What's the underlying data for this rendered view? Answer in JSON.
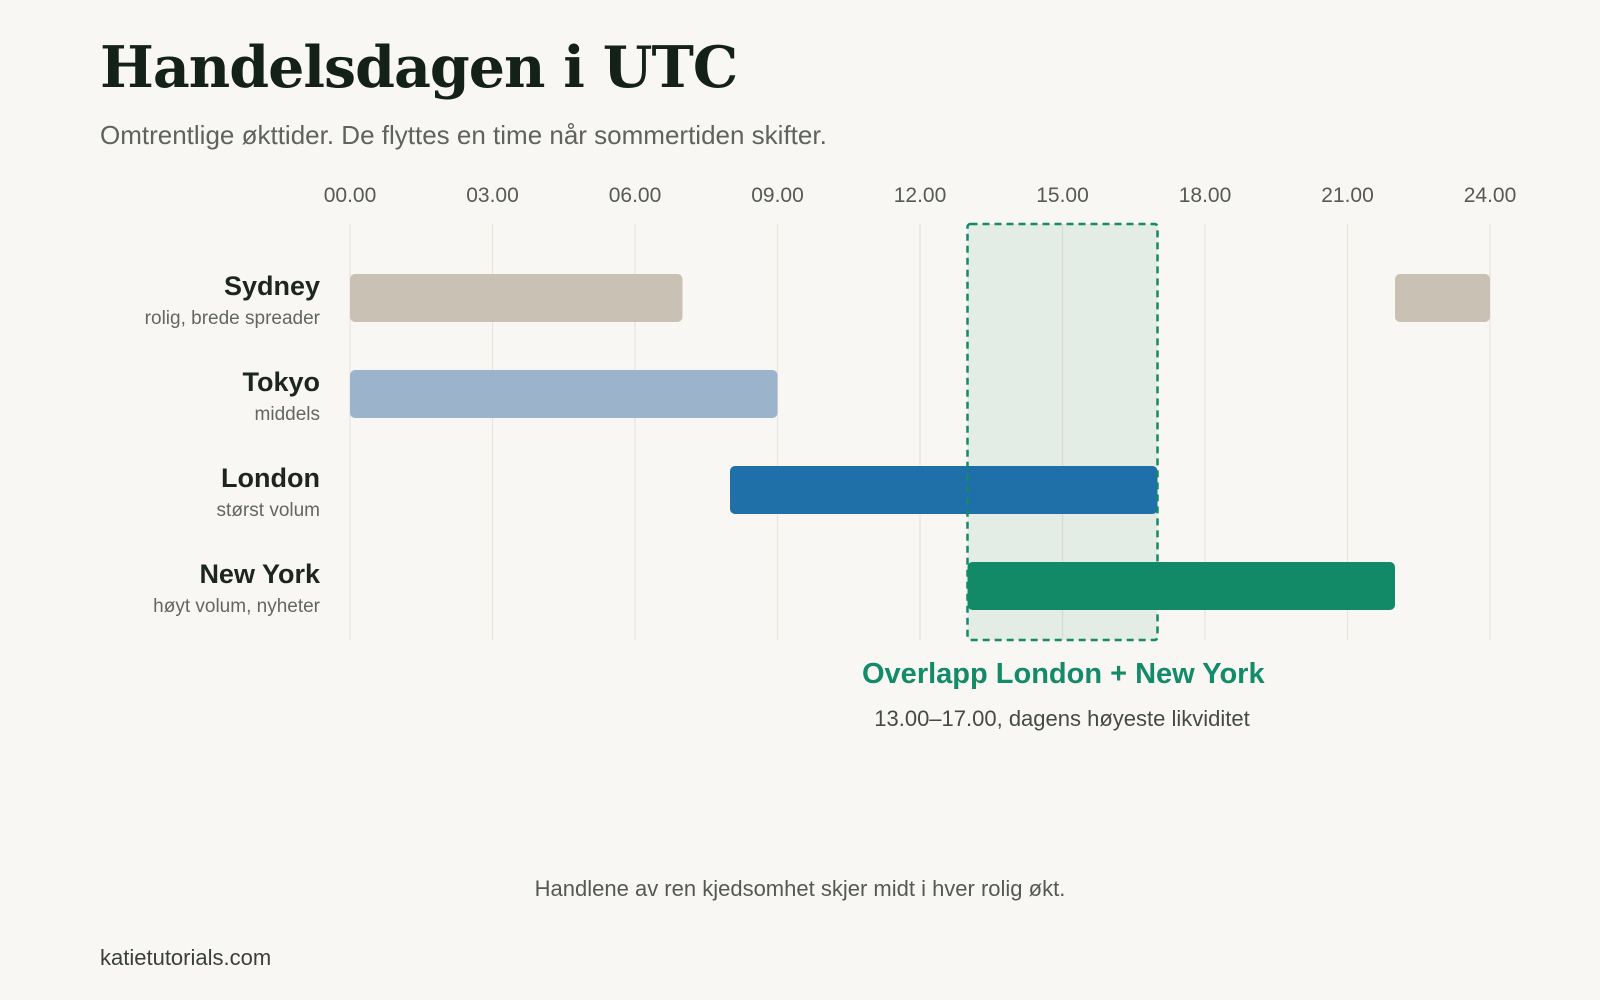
{
  "title": "Handelsdagen i UTC",
  "subtitle": "Omtrentlige økttider. De flyttes en time når sommertiden skifter.",
  "chart_data": {
    "type": "bar",
    "orientation": "horizontal-range",
    "x_unit": "hours UTC",
    "xlim": [
      0,
      24
    ],
    "x_ticks": [
      0,
      3,
      6,
      9,
      12,
      15,
      18,
      21,
      24
    ],
    "x_tick_labels": [
      "00.00",
      "03.00",
      "06.00",
      "09.00",
      "12.00",
      "15.00",
      "18.00",
      "21.00",
      "24.00"
    ],
    "grid": true,
    "sessions": [
      {
        "name": "Sydney",
        "note": "rolig, brede spreader",
        "color": "#c9c1b4",
        "ranges": [
          [
            0,
            7
          ],
          [
            22,
            24
          ]
        ]
      },
      {
        "name": "Tokyo",
        "note": "middels",
        "color": "#9bb4cc",
        "ranges": [
          [
            0,
            9
          ]
        ]
      },
      {
        "name": "London",
        "note": "størst volum",
        "color": "#1f6fa8",
        "ranges": [
          [
            8,
            17
          ]
        ]
      },
      {
        "name": "New York",
        "note": "høyt volum, nyheter",
        "color": "#128a67",
        "ranges": [
          [
            13,
            22
          ]
        ]
      }
    ],
    "highlight": {
      "range": [
        13,
        17
      ],
      "title": "Overlapp London + New York",
      "subtitle": "13.00–17.00, dagens høyeste likviditet",
      "color": "#138a68"
    }
  },
  "footnote": "Handlene av ren kjedsomhet skjer midt i hver rolig økt.",
  "source": "katietutorials.com"
}
